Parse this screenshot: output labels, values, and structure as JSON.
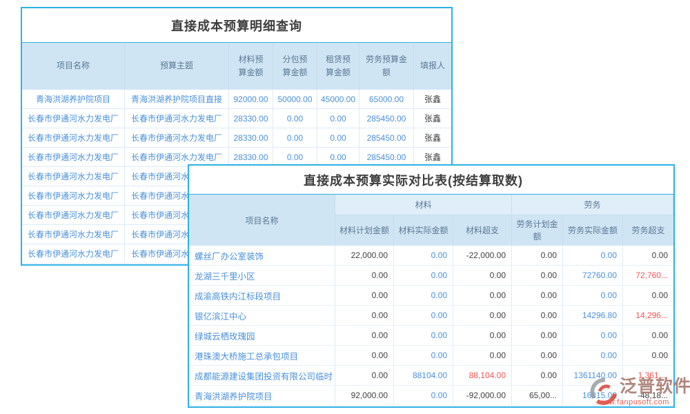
{
  "colors": {
    "table_border": "#2cb0e6",
    "header_fill": "#d0e5f4",
    "group_header_fill": "#e0eefa",
    "link_blue": "#4a90d9",
    "alert_red": "#f25555",
    "text_dark": "#3f3f3f",
    "watermark_red": "#e2483c"
  },
  "table1": {
    "title": "直接成本预算明细查询",
    "columns": [
      "项目名称",
      "预算主题",
      "材料预算金额",
      "分包预算金额",
      "租赁预算金额",
      "劳务预算金额",
      "填报人"
    ],
    "rows": [
      [
        "青海洪湖养护院项目",
        "青海洪湖养护院项目直接",
        "92000.00",
        "50000.00",
        "45000.00",
        "65000.00",
        "张鑫"
      ],
      [
        "长春市伊通河水力发电厂",
        "长春市伊通河水力发电厂",
        "28330.00",
        "0.00",
        "0.00",
        "285450.00",
        "张鑫"
      ],
      [
        "长春市伊通河水力发电厂",
        "长春市伊通河水力发电厂",
        "28330.00",
        "0.00",
        "0.00",
        "285450.00",
        "张鑫"
      ],
      [
        "长春市伊通河水力发电厂",
        "长春市伊通河水力发电厂",
        "28330.00",
        "0.00",
        "0.00",
        "285450.00",
        "张鑫"
      ],
      [
        "长春市伊通河水力发电厂",
        "长春市伊通河水力发电厂",
        "",
        "",
        "",
        "",
        ""
      ],
      [
        "长春市伊通河水力发电厂",
        "长春市伊通河水力发电厂",
        "",
        "",
        "",
        "",
        ""
      ],
      [
        "长春市伊通河水力发电厂",
        "长春市伊通河水力发电厂",
        "",
        "",
        "",
        "",
        ""
      ],
      [
        "长春市伊通河水力发电厂",
        "长春市伊通河水力发电厂",
        "",
        "",
        "",
        "",
        ""
      ],
      [
        "长春市伊通河水力发电厂",
        "长春市伊通河水力发电厂",
        "",
        "",
        "",
        "",
        ""
      ]
    ]
  },
  "table2": {
    "title": "直接成本预算实际对比表(按结算取数)",
    "project_col": "项目名称",
    "groups": [
      "材料",
      "劳务"
    ],
    "subcolumns": [
      "材料计划金额",
      "材料实际金额",
      "材料超支",
      "劳务计划金额",
      "劳务实际金额",
      "劳务超支"
    ],
    "rows": [
      {
        "name": "螺丝厂办公室装饰",
        "vals": [
          [
            "22,000.00",
            "dark"
          ],
          [
            "0.00",
            "blue"
          ],
          [
            "-22,000.00",
            "dark"
          ],
          [
            "0.00",
            "dark"
          ],
          [
            "0.00",
            "blue"
          ],
          [
            "0.00",
            "dark"
          ]
        ]
      },
      {
        "name": "龙湖三千里小区",
        "vals": [
          [
            "0.00",
            "dark"
          ],
          [
            "0.00",
            "blue"
          ],
          [
            "0.00",
            "dark"
          ],
          [
            "0.00",
            "dark"
          ],
          [
            "72760.00",
            "blue"
          ],
          [
            "72,760...",
            "red"
          ]
        ]
      },
      {
        "name": "成渝高铁内江标段项目",
        "vals": [
          [
            "0.00",
            "dark"
          ],
          [
            "0.00",
            "blue"
          ],
          [
            "0.00",
            "dark"
          ],
          [
            "0.00",
            "dark"
          ],
          [
            "0.00",
            "blue"
          ],
          [
            "0.00",
            "dark"
          ]
        ]
      },
      {
        "name": "银亿滨江中心",
        "vals": [
          [
            "0.00",
            "dark"
          ],
          [
            "0.00",
            "blue"
          ],
          [
            "0.00",
            "dark"
          ],
          [
            "0.00",
            "dark"
          ],
          [
            "14296.80",
            "blue"
          ],
          [
            "14,296...",
            "red"
          ]
        ]
      },
      {
        "name": "绿城云栖玫瑰园",
        "vals": [
          [
            "0.00",
            "dark"
          ],
          [
            "0.00",
            "blue"
          ],
          [
            "0.00",
            "dark"
          ],
          [
            "0.00",
            "dark"
          ],
          [
            "0.00",
            "blue"
          ],
          [
            "0.00",
            "dark"
          ]
        ]
      },
      {
        "name": "港珠澳大桥施工总承包项目",
        "vals": [
          [
            "0.00",
            "dark"
          ],
          [
            "0.00",
            "blue"
          ],
          [
            "0.00",
            "dark"
          ],
          [
            "0.00",
            "dark"
          ],
          [
            "0.00",
            "blue"
          ],
          [
            "0.00",
            "dark"
          ]
        ]
      },
      {
        "name": "成都能源建设集团投资有限公司临时",
        "vals": [
          [
            "0.00",
            "dark"
          ],
          [
            "88104.00",
            "blue"
          ],
          [
            "88,104.00",
            "red"
          ],
          [
            "0.00",
            "dark"
          ],
          [
            "1361140.00",
            "blue"
          ],
          [
            "1,361,...",
            "red"
          ]
        ]
      },
      {
        "name": "青海洪湖养护院项目",
        "vals": [
          [
            "92,000.00",
            "dark"
          ],
          [
            "0.00",
            "blue"
          ],
          [
            "-92,000.00",
            "dark"
          ],
          [
            "65,00...",
            "dark"
          ],
          [
            "16815.00",
            "blue"
          ],
          [
            "-48,18...",
            "dark"
          ]
        ]
      }
    ]
  },
  "watermark": {
    "brand": "泛普软件",
    "url": "www.fanpusoft.com"
  }
}
